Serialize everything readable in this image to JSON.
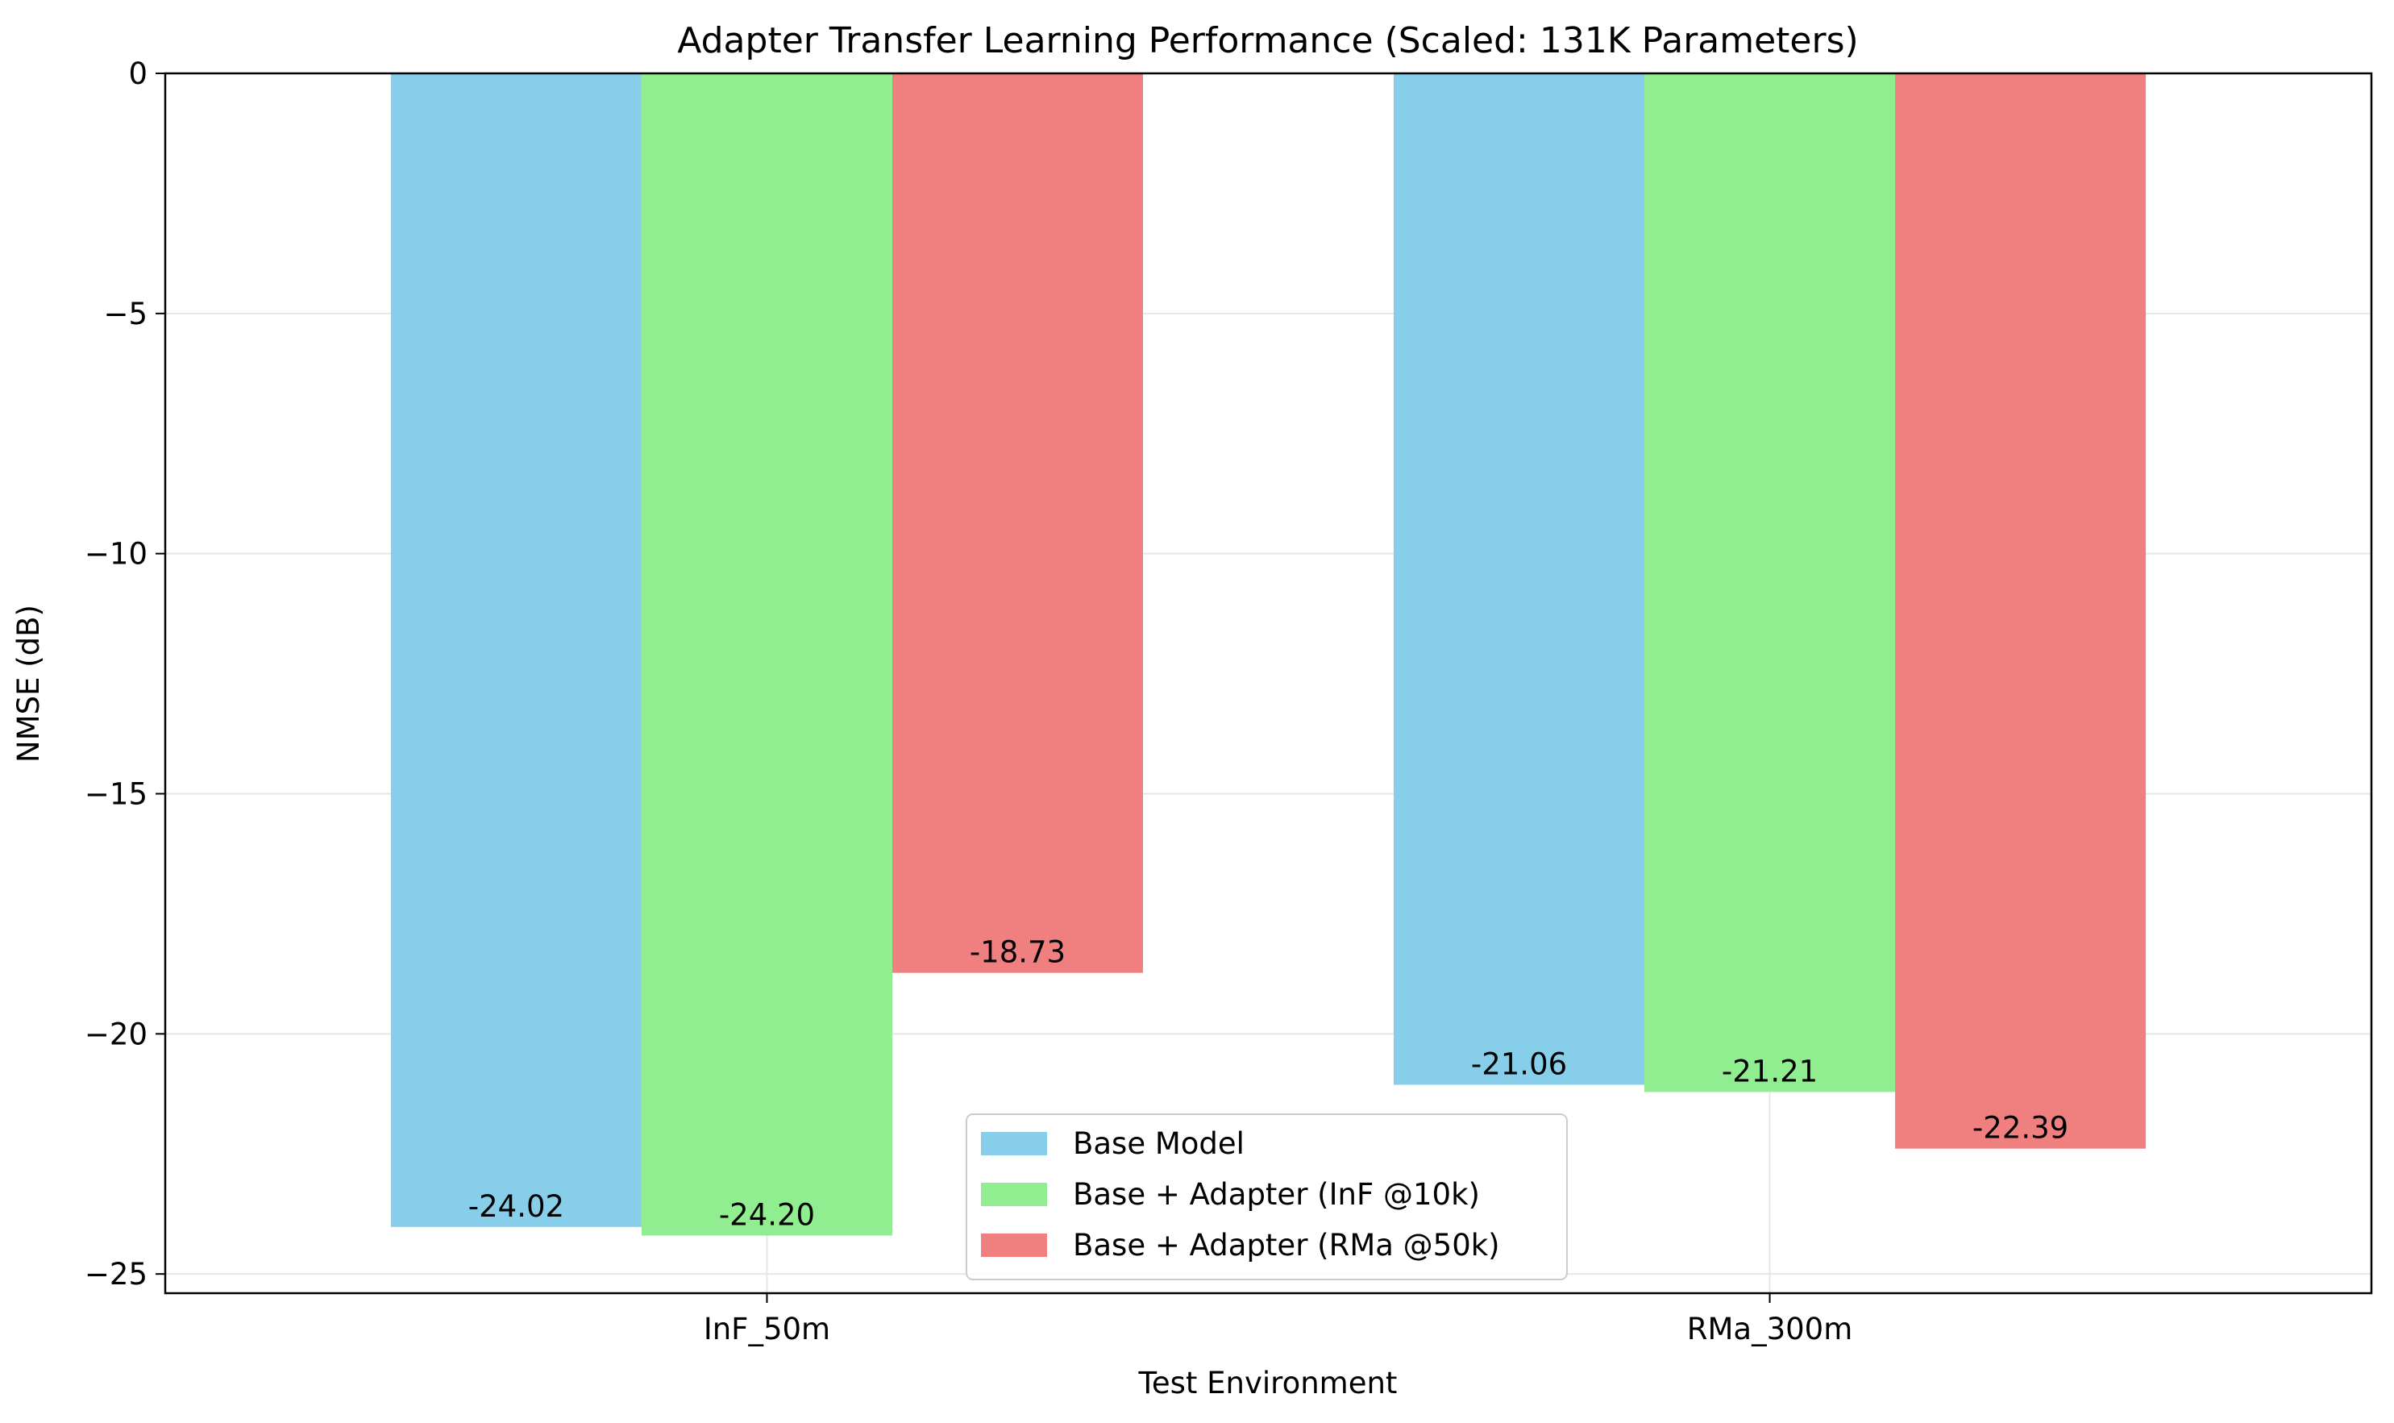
{
  "chart_data": {
    "type": "bar",
    "title": "Adapter Transfer Learning Performance (Scaled: 131K Parameters)",
    "xlabel": "Test Environment",
    "ylabel": "NMSE (dB)",
    "categories": [
      "InF_50m",
      "RMa_300m"
    ],
    "series": [
      {
        "name": "Base Model",
        "color": "#87CEEB",
        "values": [
          -24.02,
          -21.06
        ]
      },
      {
        "name": "Base + Adapter (InF @10k)",
        "color": "#90EE90",
        "values": [
          -24.2,
          -21.21
        ]
      },
      {
        "name": "Base + Adapter (RMa @50k)",
        "color": "#F08080",
        "values": [
          -18.73,
          -22.39
        ]
      }
    ],
    "ylim": [
      -25.4,
      0
    ],
    "yticks": [
      0,
      -5,
      -10,
      -15,
      -20,
      -25
    ],
    "ytick_labels": [
      "0",
      "−5",
      "−10",
      "−15",
      "−20",
      "−25"
    ],
    "grid": true,
    "legend_position": "bottom-center"
  }
}
